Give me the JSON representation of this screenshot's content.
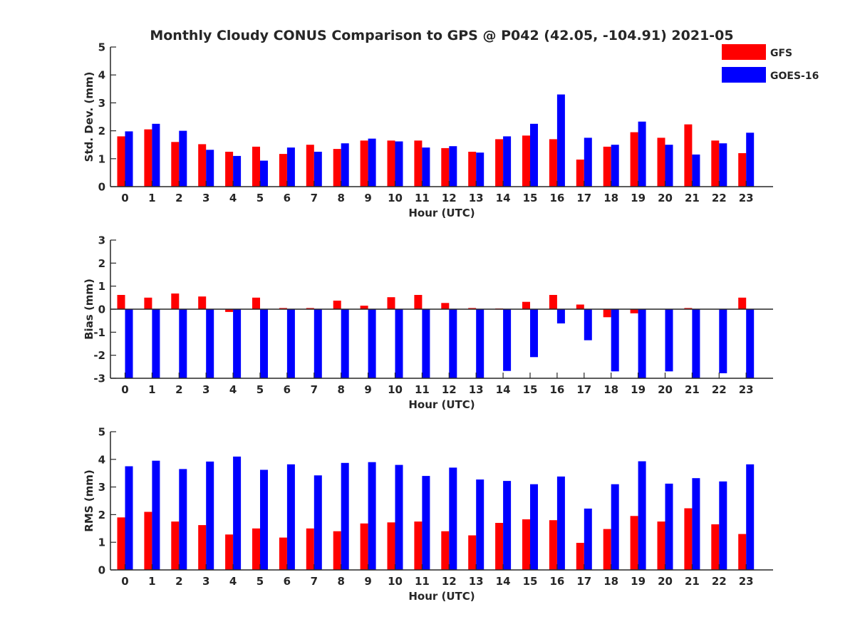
{
  "figure": {
    "title": "Monthly Cloudy CONUS Comparison to GPS @ P042 (42.05, -104.91) 2021-05"
  },
  "legend": [
    {
      "name": "GFS",
      "color": "#ff0000"
    },
    {
      "name": "GOES-16",
      "color": "#0000ff"
    }
  ],
  "chart_data": [
    {
      "type": "bar",
      "title": "Monthly Cloudy CONUS Comparison to GPS @ P042 (42.05, -104.91) 2021-05",
      "xlabel": "Hour (UTC)",
      "ylabel": "Std. Dev. (mm)",
      "ylim": [
        0,
        5
      ],
      "yticks": [
        0,
        1,
        2,
        3,
        4,
        5
      ],
      "categories": [
        "0",
        "1",
        "2",
        "3",
        "4",
        "5",
        "6",
        "7",
        "8",
        "9",
        "10",
        "11",
        "12",
        "13",
        "14",
        "15",
        "16",
        "17",
        "18",
        "19",
        "20",
        "21",
        "22",
        "23"
      ],
      "series": [
        {
          "name": "GFS",
          "color": "#ff0000",
          "values": [
            1.8,
            2.05,
            1.6,
            1.52,
            1.25,
            1.43,
            1.17,
            1.5,
            1.35,
            1.65,
            1.65,
            1.65,
            1.38,
            1.25,
            1.7,
            1.83,
            1.7,
            0.97,
            1.43,
            1.95,
            1.75,
            2.23,
            1.65,
            1.2
          ]
        },
        {
          "name": "GOES-16",
          "color": "#0000ff",
          "values": [
            1.98,
            2.25,
            2.0,
            1.32,
            1.1,
            0.93,
            1.4,
            1.25,
            1.55,
            1.72,
            1.62,
            1.4,
            1.45,
            1.22,
            1.8,
            2.25,
            3.3,
            1.75,
            1.5,
            2.33,
            1.5,
            1.15,
            1.55,
            1.93
          ]
        }
      ],
      "grid": false,
      "legend_position": "top-right"
    },
    {
      "type": "bar",
      "xlabel": "Hour (UTC)",
      "ylabel": "Bias (mm)",
      "ylim": [
        -3,
        3
      ],
      "yticks": [
        -3,
        -2,
        -1,
        0,
        1,
        2,
        3
      ],
      "categories": [
        "0",
        "1",
        "2",
        "3",
        "4",
        "5",
        "6",
        "7",
        "8",
        "9",
        "10",
        "11",
        "12",
        "13",
        "14",
        "15",
        "16",
        "17",
        "18",
        "19",
        "20",
        "21",
        "22",
        "23"
      ],
      "series": [
        {
          "name": "GFS",
          "color": "#ff0000",
          "values": [
            0.62,
            0.5,
            0.68,
            0.55,
            -0.12,
            0.5,
            0.05,
            0.05,
            0.37,
            0.15,
            0.52,
            0.62,
            0.27,
            0.05,
            0.03,
            0.32,
            0.62,
            0.2,
            -0.35,
            -0.18,
            0.0,
            0.05,
            0.0,
            0.5
          ]
        },
        {
          "name": "GOES-16",
          "color": "#0000ff",
          "values": [
            -3.0,
            -3.0,
            -3.0,
            -3.0,
            -3.0,
            -3.0,
            -3.0,
            -3.0,
            -3.0,
            -3.0,
            -3.0,
            -3.0,
            -3.0,
            -3.0,
            -2.68,
            -2.08,
            -0.62,
            -1.35,
            -2.7,
            -3.0,
            -2.7,
            -3.0,
            -2.78,
            -3.0
          ]
        }
      ],
      "grid": false
    },
    {
      "type": "bar",
      "xlabel": "Hour (UTC)",
      "ylabel": "RMS (mm)",
      "ylim": [
        0,
        5
      ],
      "yticks": [
        0,
        1,
        2,
        3,
        4,
        5
      ],
      "categories": [
        "0",
        "1",
        "2",
        "3",
        "4",
        "5",
        "6",
        "7",
        "8",
        "9",
        "10",
        "11",
        "12",
        "13",
        "14",
        "15",
        "16",
        "17",
        "18",
        "19",
        "20",
        "21",
        "22",
        "23"
      ],
      "series": [
        {
          "name": "GFS",
          "color": "#ff0000",
          "values": [
            1.9,
            2.1,
            1.75,
            1.62,
            1.28,
            1.5,
            1.17,
            1.5,
            1.4,
            1.68,
            1.72,
            1.75,
            1.4,
            1.25,
            1.7,
            1.83,
            1.8,
            0.98,
            1.48,
            1.95,
            1.75,
            2.23,
            1.65,
            1.3
          ]
        },
        {
          "name": "GOES-16",
          "color": "#0000ff",
          "values": [
            3.75,
            3.95,
            3.65,
            3.92,
            4.1,
            3.62,
            3.82,
            3.42,
            3.87,
            3.9,
            3.8,
            3.4,
            3.7,
            3.27,
            3.22,
            3.1,
            3.38,
            2.22,
            3.1,
            3.93,
            3.12,
            3.32,
            3.2,
            3.82
          ]
        }
      ],
      "grid": false
    }
  ]
}
